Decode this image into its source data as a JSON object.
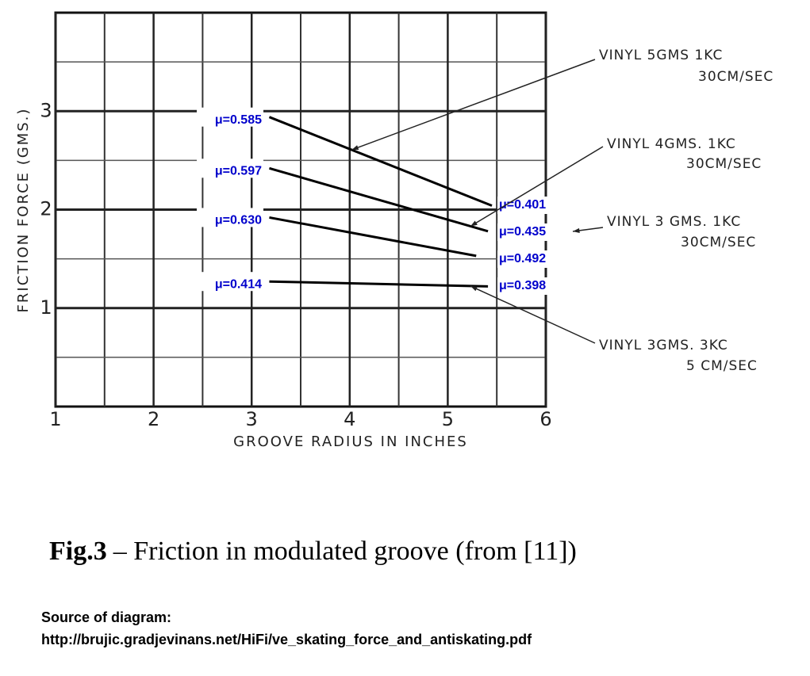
{
  "chart_data": {
    "type": "line",
    "xlabel": "GROOVE RADIUS IN INCHES",
    "ylabel": "FRICTION FORCE (GMS.)",
    "xlim": [
      1,
      6
    ],
    "ylim": [
      0,
      4
    ],
    "xticks": [
      1,
      2,
      3,
      4,
      5,
      6
    ],
    "yticks": [
      1,
      2,
      3
    ],
    "minor_xticks": [
      1.5,
      2.5,
      3.5,
      4.5,
      5.5
    ],
    "minor_yticks": [
      0.5,
      1.5,
      2.5,
      3.5
    ],
    "grid": true,
    "series": [
      {
        "name": "VINYL 5GMS 1KC",
        "speed": "30CM/SEC",
        "color": "#000000",
        "x": [
          3.18,
          5.45
        ],
        "values": [
          2.94,
          2.04
        ],
        "start_label": "μ=0.585",
        "end_label": "μ=0.401"
      },
      {
        "name": "VINYL 4GMS. 1KC",
        "speed": "30CM/SEC",
        "color": "#000000",
        "x": [
          3.18,
          5.41
        ],
        "values": [
          2.42,
          1.78
        ],
        "start_label": "μ=0.597",
        "end_label": "μ=0.435"
      },
      {
        "name": "VINYL 3 GMS. 1KC",
        "speed": "30CM/SEC",
        "color": "#000000",
        "x": [
          3.18,
          5.29
        ],
        "values": [
          1.92,
          1.53
        ],
        "start_label": "μ=0.630",
        "end_label": "μ=0.492"
      },
      {
        "name": "VINYL 3GMS. 3KC",
        "speed": "5 CM/SEC",
        "color": "#000000",
        "x": [
          3.18,
          5.41
        ],
        "values": [
          1.27,
          1.22
        ],
        "start_label": "μ=0.414",
        "end_label": "μ=0.398"
      }
    ],
    "caption_label": "Fig.3",
    "caption": "– Friction in modulated groove (from [11])",
    "source_label": "Source of diagram:",
    "source_url": "http://brujic.gradjevinans.net/HiFi/ve_skating_force_and_antiskating.pdf"
  }
}
